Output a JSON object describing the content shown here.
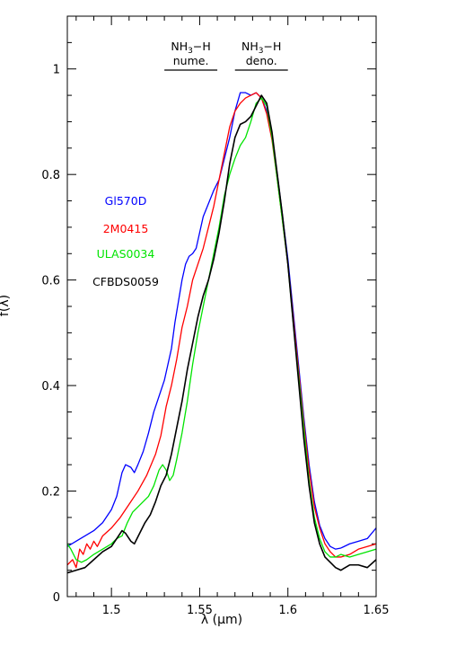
{
  "chart_data": {
    "type": "line",
    "xlabel": "λ (μm)",
    "ylabel": "f(λ)",
    "xlim": [
      1.475,
      1.65
    ],
    "ylim": [
      0,
      1.1
    ],
    "x_ticks": [
      {
        "value": 1.5,
        "label": "1.5"
      },
      {
        "value": 1.55,
        "label": "1.55"
      },
      {
        "value": 1.6,
        "label": "1.6"
      },
      {
        "value": 1.65,
        "label": "1.65"
      }
    ],
    "y_ticks": [
      {
        "value": 0,
        "label": "0"
      },
      {
        "value": 0.2,
        "label": "0.2"
      },
      {
        "value": 0.4,
        "label": "0.4"
      },
      {
        "value": 0.6,
        "label": "0.6"
      },
      {
        "value": 0.8,
        "label": "0.8"
      },
      {
        "value": 1,
        "label": "1"
      }
    ],
    "x_minor_step": 0.01,
    "y_minor_step": 0.05,
    "bands": [
      {
        "line1": "NH",
        "sub": "3",
        "suffix": "−H",
        "line2": "nume.",
        "x": [
          1.53,
          1.56
        ]
      },
      {
        "line1": "NH",
        "sub": "3",
        "suffix": "−H",
        "line2": "deno.",
        "x": [
          1.57,
          1.6
        ]
      }
    ],
    "series": [
      {
        "name": "Gl570D",
        "color": "#0000ff",
        "points": [
          [
            1.475,
            0.095
          ],
          [
            1.48,
            0.105
          ],
          [
            1.485,
            0.115
          ],
          [
            1.49,
            0.125
          ],
          [
            1.495,
            0.14
          ],
          [
            1.5,
            0.165
          ],
          [
            1.503,
            0.19
          ],
          [
            1.506,
            0.235
          ],
          [
            1.508,
            0.25
          ],
          [
            1.511,
            0.245
          ],
          [
            1.513,
            0.235
          ],
          [
            1.515,
            0.25
          ],
          [
            1.518,
            0.275
          ],
          [
            1.521,
            0.31
          ],
          [
            1.524,
            0.35
          ],
          [
            1.527,
            0.38
          ],
          [
            1.53,
            0.41
          ],
          [
            1.532,
            0.44
          ],
          [
            1.534,
            0.47
          ],
          [
            1.536,
            0.52
          ],
          [
            1.538,
            0.56
          ],
          [
            1.54,
            0.6
          ],
          [
            1.542,
            0.63
          ],
          [
            1.544,
            0.645
          ],
          [
            1.546,
            0.65
          ],
          [
            1.548,
            0.66
          ],
          [
            1.55,
            0.69
          ],
          [
            1.552,
            0.72
          ],
          [
            1.555,
            0.745
          ],
          [
            1.558,
            0.77
          ],
          [
            1.561,
            0.79
          ],
          [
            1.564,
            0.83
          ],
          [
            1.567,
            0.87
          ],
          [
            1.57,
            0.92
          ],
          [
            1.573,
            0.955
          ],
          [
            1.576,
            0.955
          ],
          [
            1.579,
            0.95
          ],
          [
            1.582,
            0.955
          ],
          [
            1.585,
            0.945
          ],
          [
            1.588,
            0.92
          ],
          [
            1.591,
            0.87
          ],
          [
            1.594,
            0.8
          ],
          [
            1.597,
            0.72
          ],
          [
            1.6,
            0.64
          ],
          [
            1.603,
            0.54
          ],
          [
            1.606,
            0.44
          ],
          [
            1.609,
            0.34
          ],
          [
            1.612,
            0.25
          ],
          [
            1.615,
            0.18
          ],
          [
            1.618,
            0.135
          ],
          [
            1.621,
            0.11
          ],
          [
            1.624,
            0.095
          ],
          [
            1.627,
            0.09
          ],
          [
            1.63,
            0.092
          ],
          [
            1.635,
            0.1
          ],
          [
            1.64,
            0.105
          ],
          [
            1.645,
            0.11
          ],
          [
            1.65,
            0.13
          ]
        ]
      },
      {
        "name": "2M0415",
        "color": "#ff0000",
        "points": [
          [
            1.475,
            0.06
          ],
          [
            1.478,
            0.07
          ],
          [
            1.48,
            0.055
          ],
          [
            1.482,
            0.09
          ],
          [
            1.484,
            0.08
          ],
          [
            1.486,
            0.1
          ],
          [
            1.488,
            0.09
          ],
          [
            1.49,
            0.105
          ],
          [
            1.492,
            0.095
          ],
          [
            1.495,
            0.115
          ],
          [
            1.5,
            0.13
          ],
          [
            1.505,
            0.15
          ],
          [
            1.51,
            0.175
          ],
          [
            1.515,
            0.2
          ],
          [
            1.52,
            0.23
          ],
          [
            1.525,
            0.27
          ],
          [
            1.528,
            0.305
          ],
          [
            1.531,
            0.36
          ],
          [
            1.534,
            0.4
          ],
          [
            1.537,
            0.45
          ],
          [
            1.54,
            0.51
          ],
          [
            1.543,
            0.55
          ],
          [
            1.546,
            0.6
          ],
          [
            1.549,
            0.63
          ],
          [
            1.552,
            0.66
          ],
          [
            1.555,
            0.7
          ],
          [
            1.558,
            0.74
          ],
          [
            1.561,
            0.79
          ],
          [
            1.564,
            0.84
          ],
          [
            1.567,
            0.89
          ],
          [
            1.57,
            0.92
          ],
          [
            1.573,
            0.935
          ],
          [
            1.576,
            0.945
          ],
          [
            1.579,
            0.95
          ],
          [
            1.582,
            0.955
          ],
          [
            1.585,
            0.945
          ],
          [
            1.588,
            0.915
          ],
          [
            1.591,
            0.865
          ],
          [
            1.594,
            0.79
          ],
          [
            1.597,
            0.71
          ],
          [
            1.6,
            0.63
          ],
          [
            1.603,
            0.53
          ],
          [
            1.606,
            0.43
          ],
          [
            1.609,
            0.33
          ],
          [
            1.612,
            0.24
          ],
          [
            1.615,
            0.17
          ],
          [
            1.618,
            0.13
          ],
          [
            1.621,
            0.1
          ],
          [
            1.624,
            0.085
          ],
          [
            1.627,
            0.075
          ],
          [
            1.63,
            0.075
          ],
          [
            1.635,
            0.08
          ],
          [
            1.64,
            0.09
          ],
          [
            1.645,
            0.095
          ],
          [
            1.65,
            0.1
          ]
        ]
      },
      {
        "name": "ULAS0034",
        "color": "#00e400",
        "points": [
          [
            1.475,
            0.1
          ],
          [
            1.477,
            0.09
          ],
          [
            1.48,
            0.07
          ],
          [
            1.483,
            0.065
          ],
          [
            1.486,
            0.07
          ],
          [
            1.49,
            0.08
          ],
          [
            1.495,
            0.09
          ],
          [
            1.5,
            0.1
          ],
          [
            1.503,
            0.11
          ],
          [
            1.506,
            0.115
          ],
          [
            1.509,
            0.14
          ],
          [
            1.512,
            0.16
          ],
          [
            1.515,
            0.17
          ],
          [
            1.518,
            0.18
          ],
          [
            1.521,
            0.19
          ],
          [
            1.524,
            0.21
          ],
          [
            1.527,
            0.24
          ],
          [
            1.529,
            0.25
          ],
          [
            1.531,
            0.24
          ],
          [
            1.533,
            0.22
          ],
          [
            1.535,
            0.23
          ],
          [
            1.537,
            0.26
          ],
          [
            1.54,
            0.31
          ],
          [
            1.543,
            0.37
          ],
          [
            1.546,
            0.44
          ],
          [
            1.549,
            0.5
          ],
          [
            1.552,
            0.55
          ],
          [
            1.555,
            0.6
          ],
          [
            1.558,
            0.65
          ],
          [
            1.561,
            0.7
          ],
          [
            1.564,
            0.76
          ],
          [
            1.567,
            0.8
          ],
          [
            1.57,
            0.83
          ],
          [
            1.573,
            0.855
          ],
          [
            1.576,
            0.87
          ],
          [
            1.579,
            0.9
          ],
          [
            1.582,
            0.935
          ],
          [
            1.585,
            0.945
          ],
          [
            1.588,
            0.93
          ],
          [
            1.591,
            0.87
          ],
          [
            1.594,
            0.79
          ],
          [
            1.597,
            0.71
          ],
          [
            1.6,
            0.63
          ],
          [
            1.603,
            0.52
          ],
          [
            1.606,
            0.42
          ],
          [
            1.609,
            0.32
          ],
          [
            1.612,
            0.22
          ],
          [
            1.615,
            0.15
          ],
          [
            1.618,
            0.11
          ],
          [
            1.621,
            0.085
          ],
          [
            1.624,
            0.075
          ],
          [
            1.627,
            0.075
          ],
          [
            1.63,
            0.08
          ],
          [
            1.635,
            0.075
          ],
          [
            1.64,
            0.08
          ],
          [
            1.645,
            0.085
          ],
          [
            1.65,
            0.09
          ]
        ]
      },
      {
        "name": "CFBDS0059",
        "color": "#000000",
        "points": [
          [
            1.475,
            0.045
          ],
          [
            1.48,
            0.05
          ],
          [
            1.485,
            0.055
          ],
          [
            1.49,
            0.07
          ],
          [
            1.495,
            0.085
          ],
          [
            1.5,
            0.095
          ],
          [
            1.503,
            0.11
          ],
          [
            1.506,
            0.125
          ],
          [
            1.508,
            0.12
          ],
          [
            1.511,
            0.105
          ],
          [
            1.513,
            0.1
          ],
          [
            1.516,
            0.12
          ],
          [
            1.519,
            0.14
          ],
          [
            1.522,
            0.155
          ],
          [
            1.525,
            0.18
          ],
          [
            1.528,
            0.21
          ],
          [
            1.531,
            0.23
          ],
          [
            1.534,
            0.27
          ],
          [
            1.537,
            0.32
          ],
          [
            1.54,
            0.37
          ],
          [
            1.543,
            0.43
          ],
          [
            1.546,
            0.48
          ],
          [
            1.549,
            0.53
          ],
          [
            1.552,
            0.57
          ],
          [
            1.555,
            0.6
          ],
          [
            1.558,
            0.64
          ],
          [
            1.561,
            0.69
          ],
          [
            1.564,
            0.75
          ],
          [
            1.567,
            0.82
          ],
          [
            1.57,
            0.87
          ],
          [
            1.573,
            0.895
          ],
          [
            1.576,
            0.9
          ],
          [
            1.579,
            0.91
          ],
          [
            1.582,
            0.93
          ],
          [
            1.585,
            0.95
          ],
          [
            1.588,
            0.935
          ],
          [
            1.591,
            0.88
          ],
          [
            1.594,
            0.8
          ],
          [
            1.597,
            0.72
          ],
          [
            1.6,
            0.63
          ],
          [
            1.603,
            0.52
          ],
          [
            1.606,
            0.41
          ],
          [
            1.609,
            0.3
          ],
          [
            1.612,
            0.21
          ],
          [
            1.615,
            0.14
          ],
          [
            1.618,
            0.1
          ],
          [
            1.621,
            0.075
          ],
          [
            1.624,
            0.065
          ],
          [
            1.627,
            0.055
          ],
          [
            1.63,
            0.05
          ],
          [
            1.635,
            0.06
          ],
          [
            1.64,
            0.06
          ],
          [
            1.645,
            0.055
          ],
          [
            1.65,
            0.07
          ]
        ]
      }
    ]
  }
}
